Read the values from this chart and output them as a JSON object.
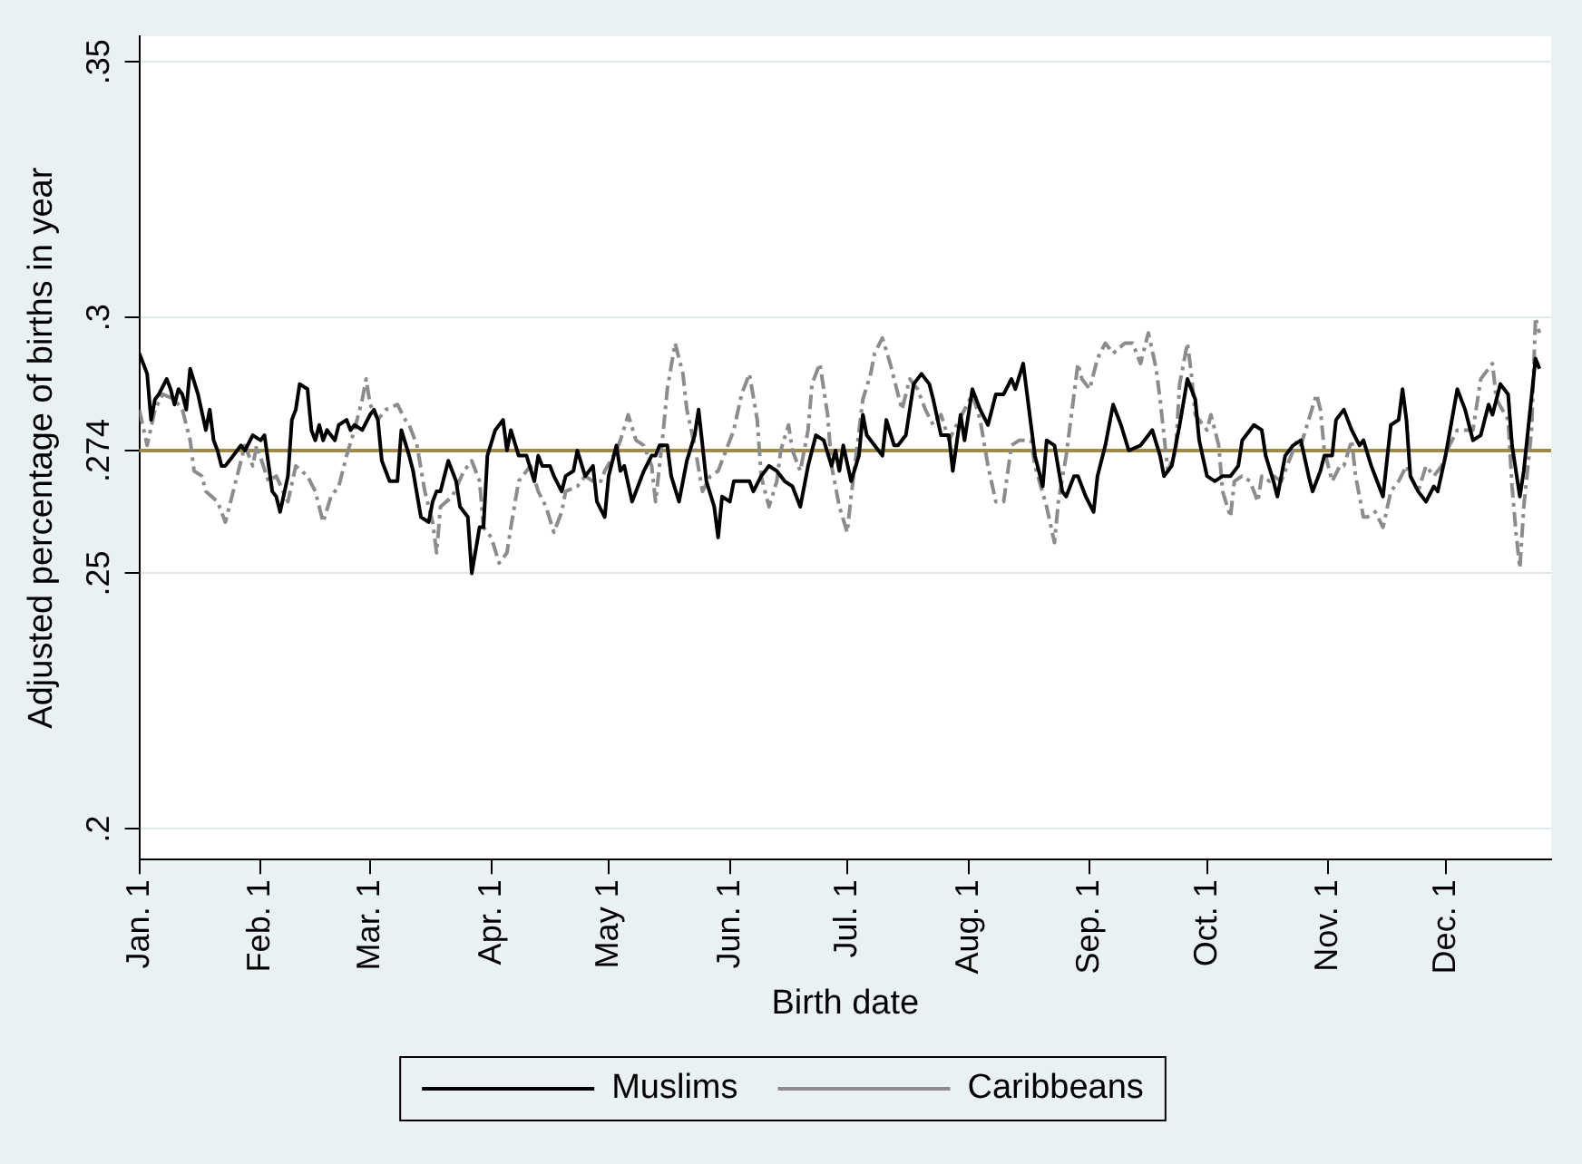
{
  "chart_data": {
    "type": "line",
    "xlabel": "Birth date",
    "ylabel": "Adjusted percentage of births in year",
    "xlim": [
      "--01-01",
      "--12-28"
    ],
    "xticks": [
      {
        "value": "--01-01",
        "label": "Jan. 1"
      },
      {
        "value": "--02-01",
        "label": "Feb. 1"
      },
      {
        "value": "--03-01",
        "label": "Mar. 1"
      },
      {
        "value": "--04-01",
        "label": "Apr. 1"
      },
      {
        "value": "--05-01",
        "label": "May 1"
      },
      {
        "value": "--06-01",
        "label": "Jun. 1"
      },
      {
        "value": "--07-01",
        "label": "Jul. 1"
      },
      {
        "value": "--08-01",
        "label": "Aug. 1"
      },
      {
        "value": "--09-01",
        "label": "Sep. 1"
      },
      {
        "value": "--10-01",
        "label": "Oct. 1"
      },
      {
        "value": "--11-01",
        "label": "Nov. 1"
      },
      {
        "value": "--12-01",
        "label": "Dec. 1"
      }
    ],
    "ylim": [
      0.194,
      0.355
    ],
    "yticks": [
      {
        "value": 0.2,
        "label": ".2"
      },
      {
        "value": 0.25,
        "label": ".25"
      },
      {
        "value": 0.274,
        "label": ".274"
      },
      {
        "value": 0.3,
        "label": ".3"
      },
      {
        "value": 0.35,
        "label": ".35"
      }
    ],
    "grid": "y",
    "legend": "bottom",
    "marker": "none",
    "ref_lines": [
      {
        "axis": "y",
        "value": 0.274,
        "color": "#a08a4a"
      }
    ],
    "series": [
      {
        "name": "Muslims",
        "color": "#000000",
        "line_style": "solid",
        "x": [
          "--01-01",
          "--01-03",
          "--01-04",
          "--01-05",
          "--01-06",
          "--01-08",
          "--01-09",
          "--01-10",
          "--01-11",
          "--01-12",
          "--01-13",
          "--01-14",
          "--01-16",
          "--01-18",
          "--01-19",
          "--01-20",
          "--01-21",
          "--01-22",
          "--01-23",
          "--01-25",
          "--01-27",
          "--01-28",
          "--01-30",
          "--02-01",
          "--02-02",
          "--02-04",
          "--02-05",
          "--02-06",
          "--02-08",
          "--02-09",
          "--02-10",
          "--02-11",
          "--02-13",
          "--02-14",
          "--02-15",
          "--02-16",
          "--02-17",
          "--02-18",
          "--02-20",
          "--02-21",
          "--02-23",
          "--02-24",
          "--02-25",
          "--02-27",
          "--03-01",
          "--03-02",
          "--03-03",
          "--03-04",
          "--03-06",
          "--03-08",
          "--03-09",
          "--03-11",
          "--03-12",
          "--03-14",
          "--03-16",
          "--03-17",
          "--03-18",
          "--03-19",
          "--03-21",
          "--03-23",
          "--03-24",
          "--03-26",
          "--03-27",
          "--03-29",
          "--03-30",
          "--03-31",
          "--04-02",
          "--04-04",
          "--04-05",
          "--04-06",
          "--04-08",
          "--04-10",
          "--04-12",
          "--04-13",
          "--04-14",
          "--04-16",
          "--04-17",
          "--04-19",
          "--04-20",
          "--04-22",
          "--04-23",
          "--04-25",
          "--04-27",
          "--04-28",
          "--04-30",
          "--05-01",
          "--05-03",
          "--05-04",
          "--05-05",
          "--05-07",
          "--05-10",
          "--05-12",
          "--05-13",
          "--05-14",
          "--05-16",
          "--05-17",
          "--05-19",
          "--05-21",
          "--05-23",
          "--05-24",
          "--05-26",
          "--05-28",
          "--05-29",
          "--05-30",
          "--06-01",
          "--06-02",
          "--06-04",
          "--06-06",
          "--06-07",
          "--06-09",
          "--06-11",
          "--06-13",
          "--06-15",
          "--06-17",
          "--06-19",
          "--06-21",
          "--06-23",
          "--06-25",
          "--06-27",
          "--06-28",
          "--06-29",
          "--06-30",
          "--07-02",
          "--07-04",
          "--07-05",
          "--07-06",
          "--07-08",
          "--07-10",
          "--07-11",
          "--07-13",
          "--07-14",
          "--07-16",
          "--07-18",
          "--07-20",
          "--07-22",
          "--07-23",
          "--07-25",
          "--07-27",
          "--07-28",
          "--07-30",
          "--07-31",
          "--08-02",
          "--08-04",
          "--08-06",
          "--08-08",
          "--08-10",
          "--08-12",
          "--08-13",
          "--08-15",
          "--08-17",
          "--08-18",
          "--08-20",
          "--08-21",
          "--08-23",
          "--08-25",
          "--08-26",
          "--08-28",
          "--08-29",
          "--08-31",
          "--09-02",
          "--09-03",
          "--09-05",
          "--09-07",
          "--09-09",
          "--09-11",
          "--09-14",
          "--09-15",
          "--09-17",
          "--09-19",
          "--09-20",
          "--09-22",
          "--09-24",
          "--09-26",
          "--09-28",
          "--09-29",
          "--10-01",
          "--10-03",
          "--10-05",
          "--10-07",
          "--10-09",
          "--10-10",
          "--10-13",
          "--10-15",
          "--10-16",
          "--10-18",
          "--10-19",
          "--10-21",
          "--10-23",
          "--10-25",
          "--10-27",
          "--10-28",
          "--10-30",
          "--10-31",
          "--11-02",
          "--11-03",
          "--11-05",
          "--11-07",
          "--11-09",
          "--11-10",
          "--11-12",
          "--11-13",
          "--11-15",
          "--11-17",
          "--11-19",
          "--11-20",
          "--11-21",
          "--11-22",
          "--11-24",
          "--11-26",
          "--11-28",
          "--11-29",
          "--12-01",
          "--12-04",
          "--12-06",
          "--12-08",
          "--12-10",
          "--12-12",
          "--12-13",
          "--12-15",
          "--12-17",
          "--12-18",
          "--12-20",
          "--12-21",
          "--12-24",
          "--12-25"
        ],
        "values": [
          0.293,
          0.289,
          0.28,
          0.284,
          0.285,
          0.288,
          0.286,
          0.283,
          0.286,
          0.285,
          0.282,
          0.29,
          0.285,
          0.278,
          0.282,
          0.276,
          0.274,
          0.271,
          0.271,
          0.273,
          0.275,
          0.274,
          0.277,
          0.276,
          0.277,
          0.266,
          0.265,
          0.262,
          0.269,
          0.28,
          0.282,
          0.287,
          0.286,
          0.278,
          0.276,
          0.279,
          0.276,
          0.278,
          0.276,
          0.279,
          0.28,
          0.278,
          0.279,
          0.278,
          0.281,
          0.282,
          0.28,
          0.272,
          0.268,
          0.268,
          0.278,
          0.273,
          0.27,
          0.261,
          0.26,
          0.264,
          0.266,
          0.266,
          0.272,
          0.268,
          0.263,
          0.261,
          0.25,
          0.259,
          0.259,
          0.273,
          0.278,
          0.28,
          0.274,
          0.278,
          0.273,
          0.273,
          0.268,
          0.273,
          0.271,
          0.271,
          0.269,
          0.266,
          0.269,
          0.27,
          0.274,
          0.269,
          0.271,
          0.264,
          0.261,
          0.269,
          0.275,
          0.27,
          0.271,
          0.264,
          0.27,
          0.273,
          0.273,
          0.275,
          0.275,
          0.269,
          0.264,
          0.272,
          0.277,
          0.282,
          0.268,
          0.263,
          0.257,
          0.265,
          0.264,
          0.268,
          0.268,
          0.268,
          0.266,
          0.269,
          0.271,
          0.27,
          0.268,
          0.267,
          0.263,
          0.271,
          0.277,
          0.276,
          0.271,
          0.274,
          0.27,
          0.275,
          0.268,
          0.273,
          0.281,
          0.277,
          0.275,
          0.273,
          0.28,
          0.275,
          0.275,
          0.277,
          0.287,
          0.289,
          0.287,
          0.284,
          0.277,
          0.277,
          0.27,
          0.281,
          0.276,
          0.286,
          0.282,
          0.279,
          0.285,
          0.285,
          0.288,
          0.286,
          0.291,
          0.279,
          0.273,
          0.267,
          0.276,
          0.275,
          0.266,
          0.265,
          0.269,
          0.269,
          0.265,
          0.262,
          0.269,
          0.275,
          0.283,
          0.279,
          0.274,
          0.275,
          0.276,
          0.278,
          0.273,
          0.269,
          0.271,
          0.279,
          0.288,
          0.284,
          0.276,
          0.269,
          0.268,
          0.269,
          0.269,
          0.271,
          0.276,
          0.279,
          0.278,
          0.273,
          0.268,
          0.265,
          0.273,
          0.275,
          0.276,
          0.269,
          0.266,
          0.27,
          0.273,
          0.273,
          0.28,
          0.282,
          0.278,
          0.275,
          0.276,
          0.271,
          0.269,
          0.265,
          0.279,
          0.28,
          0.286,
          0.28,
          0.269,
          0.266,
          0.264,
          0.267,
          0.266,
          0.273,
          0.286,
          0.282,
          0.276,
          0.277,
          0.283,
          0.281,
          0.287,
          0.285,
          0.275,
          0.265,
          0.27,
          0.292,
          0.29
        ]
      },
      {
        "name": "Caribbeans",
        "color": "#8c8c8c",
        "line_style": "dashed",
        "x": [
          "--01-01",
          "--01-03",
          "--01-05",
          "--01-07",
          "--01-10",
          "--01-12",
          "--01-14",
          "--01-15",
          "--01-17",
          "--01-18",
          "--01-21",
          "--01-23",
          "--01-25",
          "--01-27",
          "--01-28",
          "--01-30",
          "--01-31",
          "--02-03",
          "--02-05",
          "--02-08",
          "--02-10",
          "--02-13",
          "--02-15",
          "--02-17",
          "--02-19",
          "--02-21",
          "--02-23",
          "--02-25",
          "--02-27",
          "--02-28",
          "--03-01",
          "--03-03",
          "--03-05",
          "--03-08",
          "--03-10",
          "--03-11",
          "--03-13",
          "--03-15",
          "--03-17",
          "--03-18",
          "--03-19",
          "--03-22",
          "--03-25",
          "--03-27",
          "--03-29",
          "--03-30",
          "--04-01",
          "--04-03",
          "--04-05",
          "--04-06",
          "--04-08",
          "--04-11",
          "--04-13",
          "--04-15",
          "--04-17",
          "--04-19",
          "--04-20",
          "--04-23",
          "--04-25",
          "--04-27",
          "--04-29",
          "--04-30",
          "--05-03",
          "--05-04",
          "--05-06",
          "--05-08",
          "--05-10",
          "--05-12",
          "--05-13",
          "--05-15",
          "--05-16",
          "--05-18",
          "--05-20",
          "--05-21",
          "--05-23",
          "--05-25",
          "--05-27",
          "--05-29",
          "--05-31",
          "--06-02",
          "--06-04",
          "--06-06",
          "--06-08",
          "--06-09",
          "--06-11",
          "--06-13",
          "--06-14",
          "--06-16",
          "--06-17",
          "--06-19",
          "--06-21",
          "--06-22",
          "--06-24",
          "--06-26",
          "--06-27",
          "--06-29",
          "--07-01",
          "--07-02",
          "--07-05",
          "--07-07",
          "--07-08",
          "--07-10",
          "--07-12",
          "--07-14",
          "--07-15",
          "--07-17",
          "--07-19",
          "--07-21",
          "--07-23",
          "--07-25",
          "--07-27",
          "--07-29",
          "--07-31",
          "--08-02",
          "--08-04",
          "--08-06",
          "--08-08",
          "--08-10",
          "--08-12",
          "--08-14",
          "--08-17",
          "--08-18",
          "--08-21",
          "--08-23",
          "--08-24",
          "--08-26",
          "--08-28",
          "--08-29",
          "--08-30",
          "--09-01",
          "--09-03",
          "--09-05",
          "--09-07",
          "--09-10",
          "--09-12",
          "--09-14",
          "--09-16",
          "--09-18",
          "--09-19",
          "--09-21",
          "--09-23",
          "--09-24",
          "--09-26",
          "--09-27",
          "--09-28",
          "--10-01",
          "--10-02",
          "--10-04",
          "--10-05",
          "--10-07",
          "--10-08",
          "--10-10",
          "--10-12",
          "--10-14",
          "--10-15",
          "--10-17",
          "--10-18",
          "--10-20",
          "--10-22",
          "--10-24",
          "--10-25",
          "--10-27",
          "--10-29",
          "--10-30",
          "--10-31",
          "--11-02",
          "--11-04",
          "--11-05",
          "--11-07",
          "--11-08",
          "--11-10",
          "--11-11",
          "--11-13",
          "--11-15",
          "--11-17",
          "--11-19",
          "--11-21",
          "--11-22",
          "--11-24",
          "--11-26",
          "--11-28",
          "--11-30",
          "--12-02",
          "--12-04",
          "--12-06",
          "--12-08",
          "--12-10",
          "--12-13",
          "--12-14",
          "--12-17",
          "--12-18",
          "--12-19",
          "--12-20",
          "--12-21",
          "--12-23",
          "--12-24",
          "--12-25"
        ],
        "values": [
          0.282,
          0.275,
          0.282,
          0.285,
          0.284,
          0.282,
          0.276,
          0.27,
          0.269,
          0.266,
          0.264,
          0.26,
          0.266,
          0.272,
          0.275,
          0.271,
          0.275,
          0.268,
          0.269,
          0.264,
          0.271,
          0.269,
          0.266,
          0.26,
          0.265,
          0.267,
          0.273,
          0.278,
          0.284,
          0.288,
          0.283,
          0.28,
          0.282,
          0.283,
          0.28,
          0.279,
          0.275,
          0.266,
          0.26,
          0.254,
          0.263,
          0.265,
          0.27,
          0.272,
          0.268,
          0.259,
          0.257,
          0.252,
          0.254,
          0.259,
          0.268,
          0.271,
          0.266,
          0.263,
          0.258,
          0.262,
          0.266,
          0.267,
          0.269,
          0.268,
          0.268,
          0.27,
          0.274,
          0.276,
          0.281,
          0.276,
          0.275,
          0.271,
          0.264,
          0.278,
          0.286,
          0.295,
          0.289,
          0.282,
          0.275,
          0.266,
          0.269,
          0.27,
          0.274,
          0.278,
          0.285,
          0.289,
          0.28,
          0.269,
          0.263,
          0.268,
          0.274,
          0.279,
          0.274,
          0.27,
          0.278,
          0.287,
          0.291,
          0.281,
          0.271,
          0.263,
          0.258,
          0.265,
          0.284,
          0.289,
          0.293,
          0.296,
          0.291,
          0.285,
          0.282,
          0.288,
          0.286,
          0.282,
          0.279,
          0.281,
          0.276,
          0.279,
          0.282,
          0.285,
          0.28,
          0.271,
          0.264,
          0.264,
          0.275,
          0.276,
          0.276,
          0.271,
          0.263,
          0.256,
          0.264,
          0.273,
          0.285,
          0.291,
          0.288,
          0.286,
          0.292,
          0.295,
          0.293,
          0.295,
          0.295,
          0.291,
          0.297,
          0.29,
          0.284,
          0.27,
          0.274,
          0.287,
          0.295,
          0.289,
          0.281,
          0.278,
          0.281,
          0.275,
          0.266,
          0.261,
          0.268,
          0.269,
          0.268,
          0.264,
          0.269,
          0.268,
          0.269,
          0.268,
          0.272,
          0.276,
          0.275,
          0.28,
          0.285,
          0.282,
          0.274,
          0.268,
          0.271,
          0.271,
          0.276,
          0.269,
          0.261,
          0.261,
          0.262,
          0.259,
          0.266,
          0.268,
          0.271,
          0.269,
          0.266,
          0.271,
          0.269,
          0.271,
          0.275,
          0.278,
          0.278,
          0.278,
          0.288,
          0.291,
          0.284,
          0.28,
          0.267,
          0.258,
          0.251,
          0.263,
          0.278,
          0.3,
          0.297
        ]
      }
    ]
  }
}
